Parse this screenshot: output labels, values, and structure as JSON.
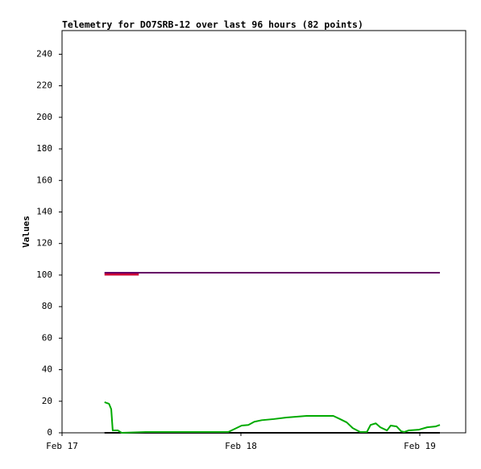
{
  "chart_data": {
    "type": "line",
    "title": "Telemetry for DO7SRB-12 over last 96 hours (82 points)",
    "y_label": "Values",
    "xlim": [
      0,
      54.16
    ],
    "ylim": [
      0,
      255
    ],
    "xticks": [
      {
        "value": 0,
        "label": "Feb 17"
      },
      {
        "value": 24,
        "label": "Feb 18"
      },
      {
        "value": 48,
        "label": "Feb 19"
      }
    ],
    "yticks": [
      0,
      20,
      40,
      60,
      80,
      100,
      120,
      140,
      160,
      180,
      200,
      220,
      240
    ],
    "grid": false,
    "series": [
      {
        "color": "#000000",
        "width": 2,
        "x": [
          5.7,
          50.7
        ],
        "values": [
          0,
          0
        ]
      },
      {
        "color": "#00aa00",
        "width": 2,
        "x": [
          5.7,
          6.3,
          6.6,
          6.8,
          7.5,
          8.0,
          11.2,
          13.3,
          17.3,
          20.3,
          22.3,
          24.1,
          25.0,
          25.8,
          26.8,
          28.4,
          30.1,
          32.8,
          36.4,
          37.3,
          38.2,
          39.0,
          40.0,
          40.9,
          41.4,
          42.1,
          42.7,
          43.6,
          44.1,
          44.9,
          45.5,
          45.9,
          46.5,
          47.9,
          49.0,
          50.1,
          50.7
        ],
        "values": [
          19.4,
          18.4,
          15,
          1.5,
          1.5,
          0,
          0.5,
          0.5,
          0.5,
          0.5,
          0.5,
          4.6,
          5,
          7,
          8,
          8.7,
          9.7,
          10.7,
          10.7,
          8.7,
          6.6,
          3,
          0.5,
          0.5,
          5,
          6,
          3.5,
          1.5,
          4.6,
          4,
          1,
          0.5,
          1.5,
          2,
          3.5,
          4,
          5
        ]
      },
      {
        "color": "#cc0033",
        "width": 3,
        "x": [
          5.7,
          10.3
        ],
        "values": [
          100.5,
          100.5
        ]
      },
      {
        "color": "#660066",
        "width": 2,
        "x": [
          5.7,
          50.7
        ],
        "values": [
          101.5,
          101.5
        ]
      }
    ]
  }
}
